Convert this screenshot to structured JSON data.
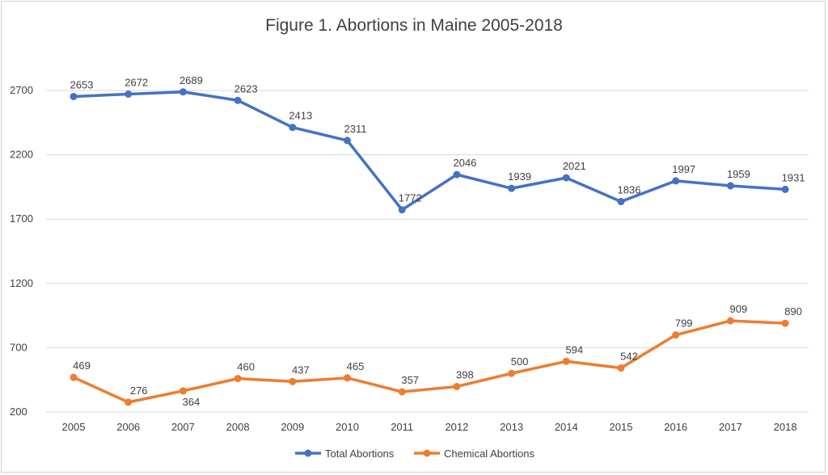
{
  "chart_data": {
    "type": "line",
    "title": "Figure 1. Abortions in Maine 2005-2018",
    "xlabel": "",
    "ylabel": "",
    "categories": [
      "2005",
      "2006",
      "2007",
      "2008",
      "2009",
      "2010",
      "2011",
      "2012",
      "2013",
      "2014",
      "2015",
      "2016",
      "2017",
      "2018"
    ],
    "y_ticks": [
      "200",
      "700",
      "1200",
      "1700",
      "2200",
      "2700"
    ],
    "ylim": [
      200,
      2700
    ],
    "grid": "horizontal",
    "legend_position": "bottom",
    "series": [
      {
        "name": "Total Abortions",
        "color": "#4472C4",
        "values": [
          2653,
          2672,
          2689,
          2623,
          2413,
          2311,
          1772,
          2046,
          1939,
          2021,
          1836,
          1997,
          1959,
          1931
        ],
        "labels": [
          "2653",
          "2672",
          "2689",
          "2623",
          "2413",
          "2311",
          "1772",
          "2046",
          "1939",
          "2021",
          "1836",
          "1997",
          "1959",
          "1931"
        ]
      },
      {
        "name": "Chemical Abortions",
        "color": "#ED7D31",
        "values": [
          469,
          276,
          364,
          460,
          437,
          465,
          357,
          398,
          500,
          594,
          542,
          799,
          909,
          890
        ],
        "labels": [
          "469",
          "276",
          "364",
          "460",
          "437",
          "465",
          "357",
          "398",
          "500",
          "594",
          "542",
          "799",
          "909",
          "890"
        ]
      }
    ]
  }
}
